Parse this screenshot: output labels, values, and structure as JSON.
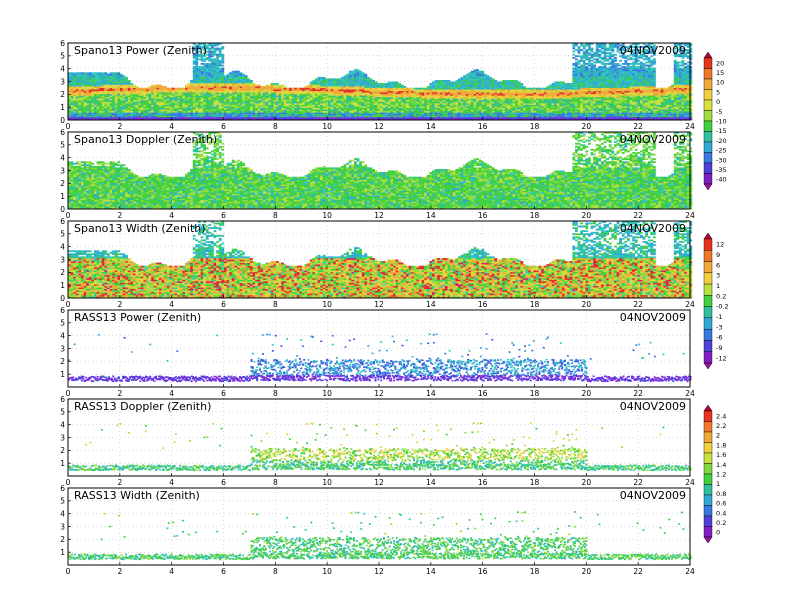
{
  "date": "04NOV2009",
  "xaxis": {
    "min": 0,
    "max": 24,
    "ticks": [
      0,
      2,
      4,
      6,
      8,
      10,
      12,
      14,
      16,
      18,
      20,
      22,
      24
    ]
  },
  "panels": [
    {
      "title": "Spano13 Power (Zenith)",
      "ylim": [
        0,
        6
      ],
      "yticks": [
        0,
        1,
        2,
        3,
        4,
        5,
        6
      ],
      "kind": "profiler_power",
      "scale": 0
    },
    {
      "title": "Spano13 Doppler (Zenith)",
      "ylim": [
        0,
        6
      ],
      "yticks": [
        0,
        1,
        2,
        3,
        4,
        5,
        6
      ],
      "kind": "profiler_doppler",
      "scale": 0
    },
    {
      "title": "Spano13 Width (Zenith)",
      "ylim": [
        0,
        6
      ],
      "yticks": [
        0,
        1,
        2,
        3,
        4,
        5,
        6
      ],
      "kind": "profiler_width",
      "scale": 1
    },
    {
      "title": "RASS13 Power (Zenith)",
      "ylim": [
        0,
        6
      ],
      "yticks": [
        1,
        2,
        3,
        4,
        5,
        6
      ],
      "kind": "rass_power",
      "scale": 1
    },
    {
      "title": "RASS13 Doppler (Zenith)",
      "ylim": [
        0,
        6
      ],
      "yticks": [
        1,
        2,
        3,
        4,
        5,
        6
      ],
      "kind": "rass_doppler",
      "scale": 2
    },
    {
      "title": "RASS13 Width (Zenith)",
      "ylim": [
        0,
        6
      ],
      "yticks": [
        1,
        2,
        3,
        4,
        5,
        6
      ],
      "kind": "rass_width",
      "scale": 2
    }
  ],
  "colorbars": [
    {
      "labels": [
        "20",
        "15",
        "10",
        "5",
        "0",
        "-5",
        "-10",
        "-15",
        "-20",
        "-25",
        "-30",
        "-35",
        "-40"
      ],
      "colors": [
        "#c0003c",
        "#e8341c",
        "#f07828",
        "#f0a838",
        "#f0d040",
        "#d8e040",
        "#a0dc40",
        "#40d040",
        "#30c0a0",
        "#30a8d8",
        "#3878e0",
        "#5040d8",
        "#8020c0",
        "#a010b0"
      ]
    },
    {
      "labels": [
        "12",
        "9",
        "6",
        "3",
        "1",
        "0.2",
        "-0.2",
        "-1",
        "-3",
        "-6",
        "-9",
        "-12"
      ],
      "colors": [
        "#c0003c",
        "#e8341c",
        "#f07828",
        "#f0a838",
        "#f0d040",
        "#b8e040",
        "#40d040",
        "#30c0a0",
        "#30a8d8",
        "#3878e0",
        "#5040d8",
        "#8020c0",
        "#a010b0"
      ]
    },
    {
      "labels": [
        "2.4",
        "2.2",
        "2",
        "1.8",
        "1.6",
        "1.4",
        "1.2",
        "1",
        "0.8",
        "0.6",
        "0.4",
        "0.2",
        "0"
      ],
      "colors": [
        "#c0003c",
        "#e8341c",
        "#f07828",
        "#f0a838",
        "#f0d040",
        "#c8e040",
        "#80d840",
        "#40d040",
        "#30c0a0",
        "#30a8d8",
        "#3878e0",
        "#5040d8",
        "#8020c0",
        "#a010b0"
      ]
    }
  ]
}
